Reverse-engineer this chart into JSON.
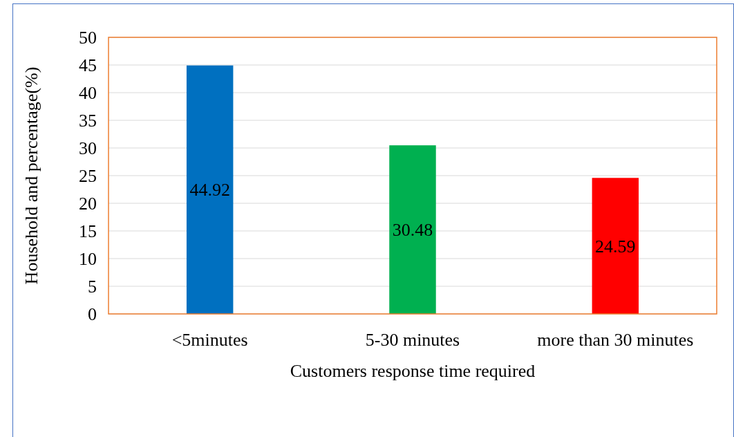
{
  "chart_data": {
    "type": "bar",
    "xlabel": "Customers response time required",
    "ylabel": "Household and percentage(%)",
    "categories": [
      "<5minutes",
      "5-30 minutes",
      "more than 30 minutes"
    ],
    "values": [
      44.92,
      30.48,
      24.59
    ],
    "colors": [
      "#0070c0",
      "#00b050",
      "#ff0000"
    ],
    "ylim": [
      0,
      50
    ],
    "yticks": [
      0,
      5,
      10,
      15,
      20,
      25,
      30,
      35,
      40,
      45,
      50
    ],
    "grid": "y",
    "data_labels": true
  }
}
